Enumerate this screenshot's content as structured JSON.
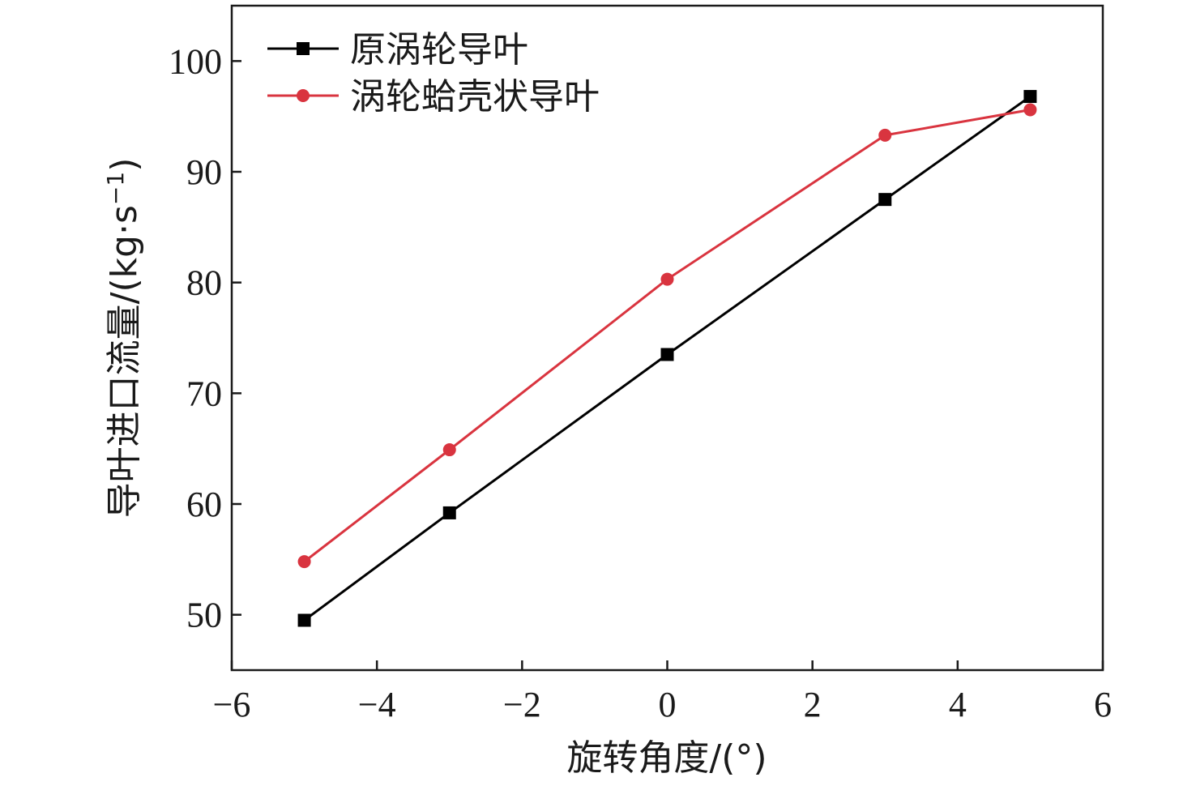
{
  "chart_data": {
    "type": "line",
    "xlabel": "旋转角度/(°)",
    "ylabel": "导叶进口流量/(kg·s",
    "ylabel_sup": "−1",
    "ylabel_close": ")",
    "xlim": [
      -6,
      6
    ],
    "ylim": [
      45,
      105
    ],
    "xticks": [
      -6,
      -4,
      -2,
      0,
      2,
      4,
      6
    ],
    "xtick_labels": [
      "−6",
      "−4",
      "−2",
      "0",
      "2",
      "4",
      "6"
    ],
    "yticks": [
      50,
      60,
      70,
      80,
      90,
      100
    ],
    "ytick_labels": [
      "50",
      "60",
      "70",
      "80",
      "90",
      "100"
    ],
    "grid": false,
    "legend_position": "top-left",
    "x": [
      -5,
      -3,
      0,
      3,
      5
    ],
    "series": [
      {
        "name": "原涡轮导叶",
        "marker": "square",
        "color": "#000000",
        "values": [
          49.5,
          59.2,
          73.5,
          87.5,
          96.8
        ]
      },
      {
        "name": "涡轮蛤壳状导叶",
        "marker": "circle",
        "color": "#d9343f",
        "values": [
          54.8,
          64.9,
          80.3,
          93.3,
          95.6
        ]
      }
    ]
  }
}
